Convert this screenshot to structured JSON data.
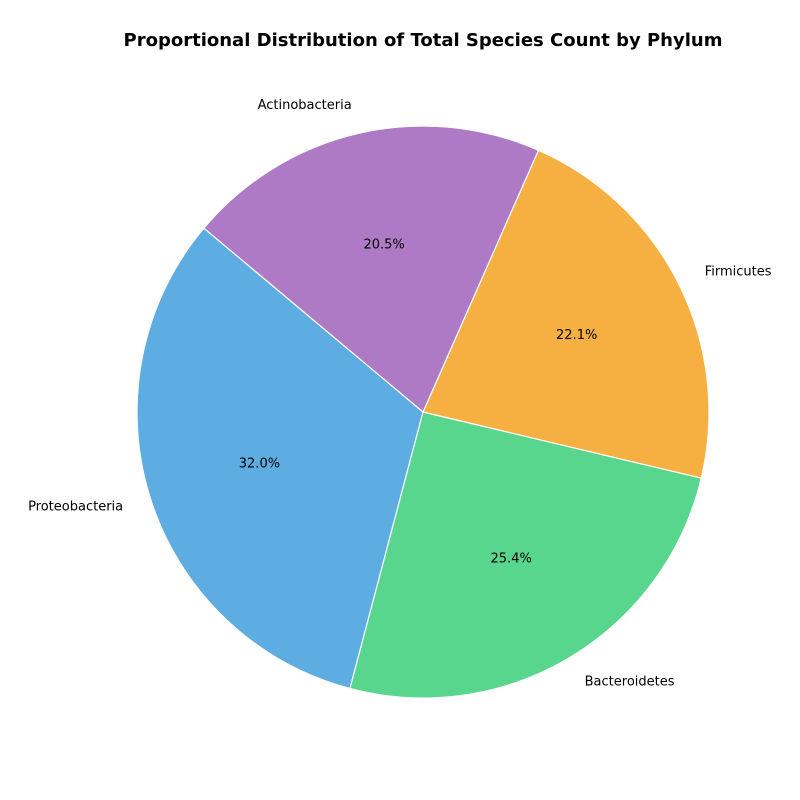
{
  "chart_data": {
    "type": "pie",
    "title": "Proportional Distribution of Total Species Count by Phylum",
    "categories": [
      "Proteobacteria",
      "Bacteroidetes",
      "Firmicutes",
      "Actinobacteria"
    ],
    "values": [
      32.0,
      25.4,
      22.1,
      20.5
    ],
    "percent_labels": [
      "32.0%",
      "25.4%",
      "22.1%",
      "20.5%"
    ],
    "colors": [
      "#5dade2",
      "#58d68d",
      "#f5b041",
      "#af7ac5"
    ],
    "start_angle_deg": 140,
    "direction": "counterclockwise",
    "edge_color": "#ffffff"
  }
}
